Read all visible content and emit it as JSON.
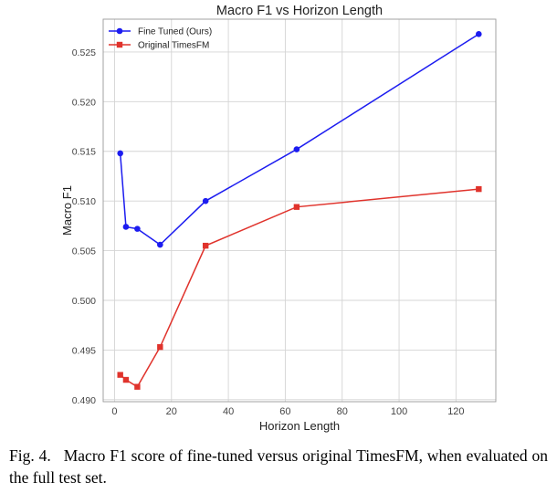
{
  "chart_data": {
    "type": "line",
    "title": "Macro F1 vs Horizon Length",
    "xlabel": "Horizon Length",
    "ylabel": "Macro F1",
    "xlim": [
      -4,
      134
    ],
    "ylim": [
      0.4898,
      0.5283
    ],
    "xticks": [
      0,
      20,
      40,
      60,
      80,
      100,
      120
    ],
    "yticks": [
      0.49,
      0.495,
      0.5,
      0.505,
      0.51,
      0.515,
      0.52,
      0.525
    ],
    "ytick_labels": [
      "0.490",
      "0.495",
      "0.500",
      "0.505",
      "0.510",
      "0.515",
      "0.520",
      "0.525"
    ],
    "grid": true,
    "legend_position": "top-left",
    "series": [
      {
        "name": "Fine Tuned (Ours)",
        "color": "#1c1cf0",
        "marker": "circle",
        "x": [
          2,
          4,
          8,
          16,
          32,
          64,
          128
        ],
        "y": [
          0.5148,
          0.5074,
          0.5072,
          0.5056,
          0.51,
          0.5152,
          0.5268
        ]
      },
      {
        "name": "Original TimesFM",
        "color": "#e0332c",
        "marker": "square",
        "x": [
          2,
          4,
          8,
          16,
          32,
          64,
          128
        ],
        "y": [
          0.4925,
          0.492,
          0.4913,
          0.4953,
          0.5055,
          0.5094,
          0.5112
        ]
      }
    ]
  },
  "caption": {
    "label": "Fig. 4.",
    "text": "Macro F1 score of fine-tuned versus original TimesFM, when evaluated on the full test set."
  }
}
